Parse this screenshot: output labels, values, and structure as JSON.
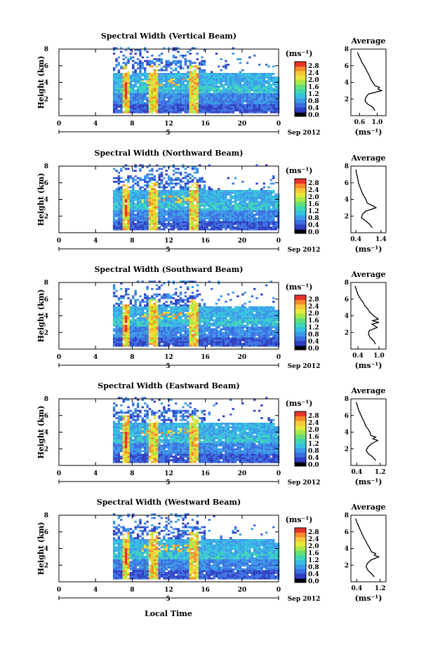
{
  "figure": {
    "xlabel": "Local Time",
    "date_label": "Sep 2012"
  },
  "palette": [
    "#1a1a8c",
    "#2f3fc2",
    "#3a6fe0",
    "#3a9ae8",
    "#35c0e0",
    "#3ed6b4",
    "#63e07a",
    "#a7e84a",
    "#e6e83a",
    "#f7c83a",
    "#f58a2e",
    "#e8332a"
  ],
  "chart_data": [
    {
      "type": "heatmap",
      "title": "Spectral Width (Vertical Beam)",
      "ylabel": "Height (km)",
      "x_ticks": [
        "0",
        "4",
        "8",
        "12",
        "16",
        "20",
        "0"
      ],
      "x_sub_label": "5",
      "xlim": [
        0,
        24
      ],
      "ylim": [
        0,
        8
      ],
      "y_ticks": [
        "2",
        "4",
        "6",
        "8"
      ],
      "colorbar": {
        "unit": "(ms⁻¹)",
        "ticks": [
          "0.0",
          "0.4",
          "0.8",
          "1.2",
          "1.6",
          "2.0",
          "2.4",
          "2.8"
        ]
      },
      "profile": {
        "title": "Average",
        "xlabel": "(ms⁻¹)",
        "x_ticks": [
          "0.6",
          "1.0"
        ],
        "xlim": [
          0.4,
          1.2
        ],
        "heights": [
          0.6,
          1.0,
          1.4,
          1.8,
          2.2,
          2.6,
          3.0,
          3.2,
          3.4,
          3.6,
          4.0,
          4.4,
          4.8,
          5.2,
          5.6,
          6.0,
          6.4,
          6.8,
          7.2,
          7.6
        ],
        "values": [
          0.95,
          0.9,
          0.78,
          0.72,
          0.74,
          0.8,
          1.1,
          1.02,
          1.05,
          0.95,
          0.9,
          0.85,
          0.82,
          0.78,
          0.74,
          0.7,
          0.65,
          0.62,
          0.58,
          0.55
        ]
      }
    },
    {
      "type": "heatmap",
      "title": "Spectral Width (Northward Beam)",
      "ylabel": "Height (km)",
      "x_ticks": [
        "0",
        "4",
        "8",
        "12",
        "16",
        "20",
        "0"
      ],
      "x_sub_label": "5",
      "xlim": [
        0,
        24
      ],
      "ylim": [
        0,
        8
      ],
      "y_ticks": [
        "2",
        "4",
        "6",
        "8"
      ],
      "colorbar": {
        "unit": "(ms⁻¹)",
        "ticks": [
          "0.0",
          "0.4",
          "0.8",
          "1.2",
          "1.6",
          "2.0",
          "2.4",
          "2.8"
        ]
      },
      "profile": {
        "title": "Average",
        "xlabel": "(ms⁻¹)",
        "x_ticks": [
          "0.4",
          "1.4"
        ],
        "xlim": [
          0.2,
          1.6
        ],
        "heights": [
          0.6,
          1.0,
          1.4,
          1.8,
          2.2,
          2.6,
          3.0,
          3.2,
          3.4,
          3.6,
          4.0,
          4.4,
          4.8,
          5.2,
          5.6,
          6.0,
          6.4,
          6.8,
          7.2,
          7.6
        ],
        "values": [
          1.05,
          0.95,
          0.8,
          0.62,
          0.66,
          0.8,
          1.2,
          1.1,
          0.95,
          0.85,
          0.8,
          0.72,
          0.65,
          0.6,
          0.55,
          0.5,
          0.48,
          0.45,
          0.42,
          0.4
        ]
      }
    },
    {
      "type": "heatmap",
      "title": "Spectral Width (Southward Beam)",
      "ylabel": "Height (km)",
      "x_ticks": [
        "0",
        "4",
        "8",
        "12",
        "16",
        "20",
        "0"
      ],
      "x_sub_label": "5",
      "xlim": [
        0,
        24
      ],
      "ylim": [
        0,
        8
      ],
      "y_ticks": [
        "2",
        "4",
        "6",
        "8"
      ],
      "colorbar": {
        "unit": "(ms⁻¹)",
        "ticks": [
          "0.0",
          "0.4",
          "0.8",
          "1.2",
          "1.6",
          "2.0",
          "2.4",
          "2.8"
        ]
      },
      "profile": {
        "title": "Average",
        "xlabel": "(ms⁻¹)",
        "x_ticks": [
          "0.4",
          "1.0"
        ],
        "xlim": [
          0.2,
          1.2
        ],
        "heights": [
          0.6,
          1.0,
          1.4,
          1.8,
          2.2,
          2.6,
          3.0,
          3.2,
          3.4,
          3.6,
          4.0,
          4.4,
          4.8,
          5.2,
          5.6,
          6.0,
          6.4,
          6.8,
          7.2,
          7.6
        ],
        "values": [
          0.9,
          0.85,
          0.75,
          0.7,
          0.72,
          0.95,
          0.8,
          1.0,
          0.82,
          0.98,
          0.85,
          0.75,
          0.68,
          0.6,
          0.55,
          0.48,
          0.42,
          0.38,
          0.35,
          0.32
        ]
      }
    },
    {
      "type": "heatmap",
      "title": "Spectral Width (Eastward Beam)",
      "ylabel": "Height (km)",
      "x_ticks": [
        "0",
        "4",
        "8",
        "12",
        "16",
        "20",
        "0"
      ],
      "x_sub_label": "5",
      "xlim": [
        0,
        24
      ],
      "ylim": [
        0,
        8
      ],
      "y_ticks": [
        "2",
        "4",
        "6",
        "8"
      ],
      "colorbar": {
        "unit": "(ms⁻¹)",
        "ticks": [
          "0.0",
          "0.4",
          "0.8",
          "1.2",
          "1.6",
          "2.0",
          "2.4",
          "2.8"
        ]
      },
      "profile": {
        "title": "Average",
        "xlabel": "(ms⁻¹)",
        "x_ticks": [
          "0.4",
          "1.2"
        ],
        "xlim": [
          0.2,
          1.4
        ],
        "heights": [
          0.6,
          1.0,
          1.4,
          1.8,
          2.2,
          2.6,
          3.0,
          3.2,
          3.4,
          3.6,
          4.0,
          4.4,
          4.8,
          5.2,
          5.6,
          6.0,
          6.4,
          6.8,
          7.2,
          7.6
        ],
        "values": [
          1.05,
          0.95,
          0.8,
          0.72,
          0.78,
          0.9,
          1.12,
          0.95,
          1.05,
          0.88,
          0.85,
          0.78,
          0.7,
          0.66,
          0.6,
          0.55,
          0.5,
          0.45,
          0.42,
          0.38
        ]
      }
    },
    {
      "type": "heatmap",
      "title": "Spectral Width (Westward Beam)",
      "ylabel": "Height (km)",
      "x_ticks": [
        "0",
        "4",
        "8",
        "12",
        "16",
        "20",
        "0"
      ],
      "x_sub_label": "5",
      "xlim": [
        0,
        24
      ],
      "ylim": [
        0,
        8
      ],
      "y_ticks": [
        "2",
        "4",
        "6",
        "8"
      ],
      "colorbar": {
        "unit": "(ms⁻¹)",
        "ticks": [
          "0.0",
          "0.4",
          "0.8",
          "1.2",
          "1.6",
          "2.0",
          "2.4",
          "2.8"
        ]
      },
      "profile": {
        "title": "Average",
        "xlabel": "(ms⁻¹)",
        "x_ticks": [
          "0.4",
          "1.2"
        ],
        "xlim": [
          0.2,
          1.4
        ],
        "heights": [
          0.6,
          1.0,
          1.4,
          1.8,
          2.2,
          2.6,
          3.0,
          3.2,
          3.4,
          3.6,
          4.0,
          4.4,
          4.8,
          5.2,
          5.6,
          6.0,
          6.4,
          6.8,
          7.2,
          7.6
        ],
        "values": [
          1.0,
          0.9,
          0.78,
          0.72,
          0.76,
          0.88,
          1.15,
          1.0,
          1.05,
          0.9,
          0.85,
          0.78,
          0.72,
          0.66,
          0.6,
          0.55,
          0.5,
          0.45,
          0.4,
          0.36
        ]
      }
    }
  ]
}
